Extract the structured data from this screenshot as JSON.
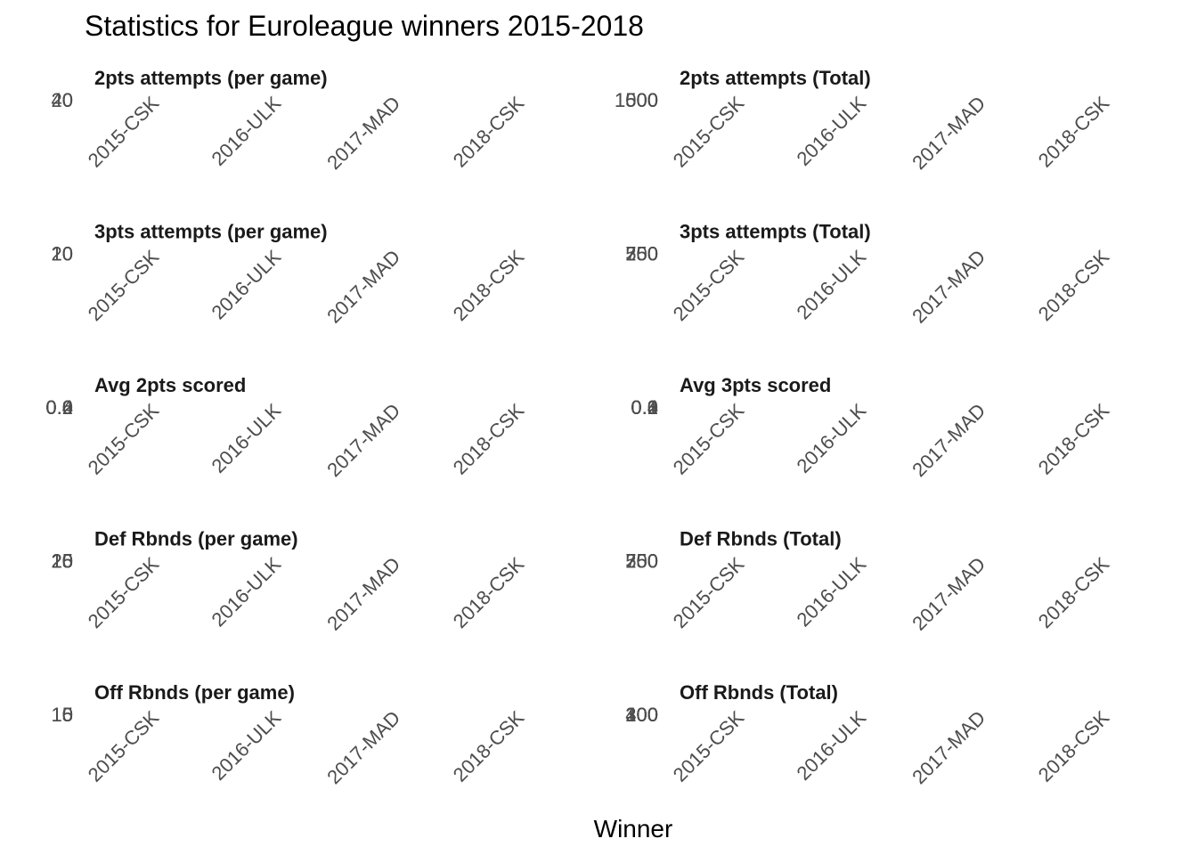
{
  "title": "Statistics for Euroleague winners 2015-2018",
  "xlabel": "Winner",
  "chart_data": {
    "type": "bar",
    "title": "Statistics for Euroleague winners 2015-2018",
    "xlabel": "Winner",
    "categories": [
      "2015-CSK",
      "2016-ULK",
      "2017-MAD",
      "2018-CSK"
    ],
    "panels": [
      {
        "title": "2pts attempts (per game)",
        "y_ticks": [
          "40",
          "20",
          "0"
        ]
      },
      {
        "title": "2pts attempts (Total)",
        "y_ticks": [
          "1500",
          "1000",
          "500",
          "0"
        ]
      },
      {
        "title": "3pts attempts (per game)",
        "y_ticks": [
          "20",
          "10",
          "0"
        ]
      },
      {
        "title": "3pts attempts (Total)",
        "y_ticks": [
          "750",
          "500",
          "250",
          "0"
        ]
      },
      {
        "title": "Avg 2pts scored",
        "y_ticks": [
          "0.6",
          "0.4",
          "0.2",
          "0.0"
        ]
      },
      {
        "title": "Avg 3pts scored",
        "y_ticks": [
          "0.4",
          "0.3",
          "0.2",
          "0.1",
          "0.0"
        ]
      },
      {
        "title": "Def Rbnds (per game)",
        "y_ticks": [
          "25",
          "20",
          "15",
          "10",
          "5",
          "0"
        ]
      },
      {
        "title": "Def Rbnds (Total)",
        "y_ticks": [
          "750",
          "500",
          "250",
          "0"
        ]
      },
      {
        "title": "Off Rbnds (per game)",
        "y_ticks": [
          "15",
          "10",
          "5",
          "0"
        ]
      },
      {
        "title": "Off Rbnds (Total)",
        "y_ticks": [
          "400",
          "300",
          "200",
          "100",
          "0"
        ]
      }
    ]
  }
}
